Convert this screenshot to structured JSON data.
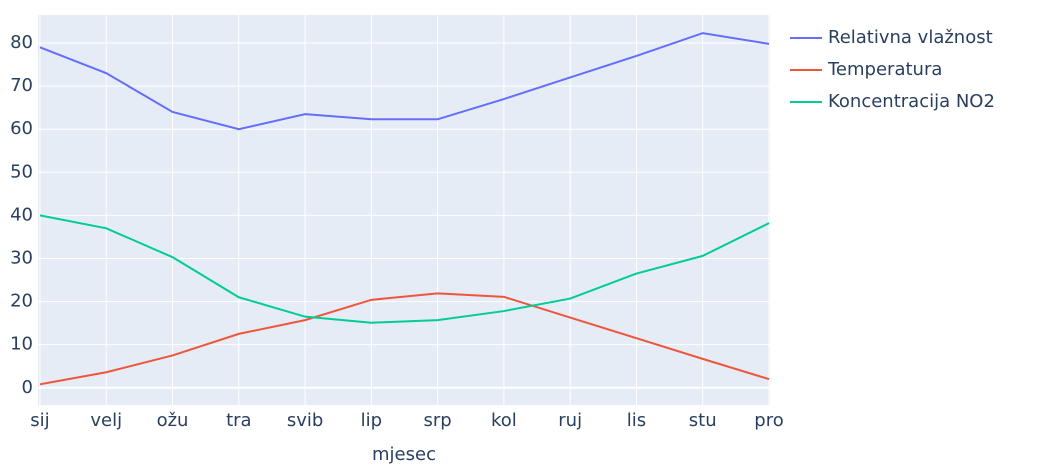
{
  "chart_data": {
    "type": "line",
    "x_label": "mjesec",
    "categories": [
      "sij",
      "velj",
      "ožu",
      "tra",
      "svib",
      "lip",
      "srp",
      "kol",
      "ruj",
      "lis",
      "stu",
      "pro"
    ],
    "series": [
      {
        "name": "Relativna vlažnost",
        "color": "#636efa",
        "values": [
          79,
          73,
          64,
          60,
          63.5,
          62.3,
          62.3,
          67,
          72,
          77,
          82.3,
          79.8
        ]
      },
      {
        "name": "Temperatura",
        "color": "#ef553b",
        "values": [
          0.8,
          3.6,
          7.5,
          12.5,
          15.7,
          20.4,
          21.9,
          21.1,
          16.3,
          11.5,
          6.7,
          2.0
        ]
      },
      {
        "name": "Koncentracija NO2",
        "color": "#00cc96",
        "values": [
          40,
          37,
          30.3,
          21,
          16.5,
          15.1,
          15.7,
          17.8,
          20.7,
          26.5,
          30.6,
          38.2
        ]
      }
    ],
    "ylim": [
      -4,
      86.5
    ],
    "yticks": [
      0,
      10,
      20,
      30,
      40,
      50,
      60,
      70,
      80
    ],
    "grid": true,
    "legend": "right"
  }
}
